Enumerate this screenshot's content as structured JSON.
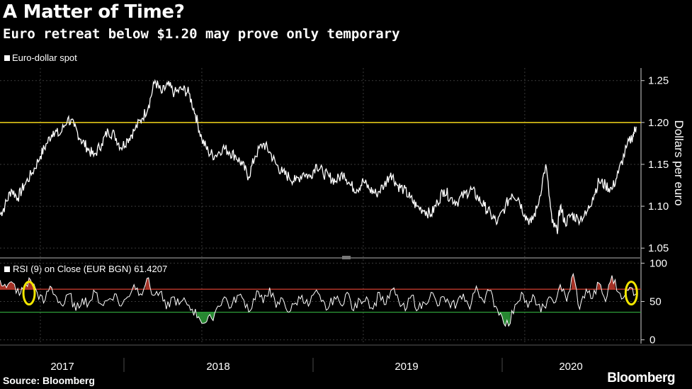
{
  "header": {
    "title": "A Matter of Time?",
    "subtitle": "Euro retreat below $1.20 may prove only temporary"
  },
  "footer": {
    "source": "Source: Bloomberg",
    "brand": "Bloomberg"
  },
  "colors": {
    "background": "#000000",
    "price_line": "#ffffff",
    "threshold": "#f2d61a",
    "overbought": "#c0392b",
    "oversold": "#2e9e3a",
    "highlight": "#f2e600"
  },
  "chart_data": [
    {
      "type": "line",
      "title": "Euro-dollar spot",
      "legend": [
        "Euro-dollar spot"
      ],
      "ylabel": "Dollars per euro",
      "ylim": [
        1.04,
        1.265
      ],
      "yticks": [
        "1.25",
        "1.20",
        "1.15",
        "1.10",
        "1.05"
      ],
      "reference_line": 1.2,
      "x": [
        2016.75,
        2016.78,
        2016.82,
        2016.86,
        2016.9,
        2016.95,
        2017.0,
        2017.04,
        2017.08,
        2017.12,
        2017.17,
        2017.21,
        2017.25,
        2017.29,
        2017.33,
        2017.38,
        2017.42,
        2017.46,
        2017.5,
        2017.54,
        2017.58,
        2017.63,
        2017.67,
        2017.71,
        2017.75,
        2017.79,
        2017.83,
        2017.88,
        2017.92,
        2017.96,
        2018.0,
        2018.04,
        2018.08,
        2018.13,
        2018.17,
        2018.21,
        2018.25,
        2018.29,
        2018.33,
        2018.38,
        2018.42,
        2018.46,
        2018.5,
        2018.54,
        2018.58,
        2018.63,
        2018.67,
        2018.71,
        2018.75,
        2018.79,
        2018.83,
        2018.88,
        2018.92,
        2018.96,
        2019.0,
        2019.04,
        2019.08,
        2019.13,
        2019.17,
        2019.21,
        2019.25,
        2019.29,
        2019.33,
        2019.38,
        2019.42,
        2019.46,
        2019.5,
        2019.54,
        2019.58,
        2019.63,
        2019.67,
        2019.71,
        2019.75,
        2019.79,
        2019.83,
        2019.88,
        2019.92,
        2019.96,
        2020.0,
        2020.04,
        2020.08,
        2020.13,
        2020.17,
        2020.2,
        2020.22,
        2020.25,
        2020.29,
        2020.33,
        2020.38,
        2020.42,
        2020.46,
        2020.5,
        2020.54,
        2020.58,
        2020.63,
        2020.67,
        2020.69
      ],
      "values": [
        1.09,
        1.1,
        1.12,
        1.11,
        1.125,
        1.14,
        1.16,
        1.175,
        1.19,
        1.185,
        1.205,
        1.195,
        1.18,
        1.17,
        1.16,
        1.175,
        1.19,
        1.185,
        1.17,
        1.18,
        1.19,
        1.205,
        1.22,
        1.25,
        1.235,
        1.245,
        1.235,
        1.24,
        1.235,
        1.21,
        1.18,
        1.165,
        1.16,
        1.17,
        1.165,
        1.16,
        1.15,
        1.135,
        1.16,
        1.175,
        1.165,
        1.15,
        1.14,
        1.135,
        1.13,
        1.14,
        1.135,
        1.15,
        1.14,
        1.135,
        1.13,
        1.14,
        1.125,
        1.12,
        1.13,
        1.12,
        1.115,
        1.125,
        1.14,
        1.125,
        1.12,
        1.11,
        1.1,
        1.095,
        1.09,
        1.105,
        1.12,
        1.11,
        1.105,
        1.115,
        1.12,
        1.11,
        1.1,
        1.09,
        1.08,
        1.1,
        1.115,
        1.11,
        1.09,
        1.08,
        1.1,
        1.15,
        1.08,
        1.07,
        1.1,
        1.08,
        1.09,
        1.085,
        1.09,
        1.11,
        1.13,
        1.125,
        1.12,
        1.14,
        1.17,
        1.185,
        1.195
      ],
      "xticks": [
        "2017",
        "2018",
        "2019",
        "2020"
      ]
    },
    {
      "type": "line",
      "title": "RSI (9) on Close (EUR BGN) 61.4207",
      "legend": [
        "RSI (9)  on Close (EUR BGN) 61.4207"
      ],
      "ylim": [
        -5,
        105
      ],
      "yticks": [
        "100",
        "50",
        "0"
      ],
      "overbought": 66,
      "oversold": 36,
      "highlights": [
        2016.93,
        2020.66
      ],
      "x": [
        2016.75,
        2016.79,
        2016.83,
        2016.87,
        2016.9,
        2016.94,
        2016.98,
        2017.02,
        2017.06,
        2017.1,
        2017.14,
        2017.18,
        2017.22,
        2017.26,
        2017.3,
        2017.34,
        2017.38,
        2017.42,
        2017.46,
        2017.5,
        2017.54,
        2017.58,
        2017.62,
        2017.66,
        2017.7,
        2017.74,
        2017.78,
        2017.82,
        2017.86,
        2017.9,
        2017.94,
        2017.98,
        2018.02,
        2018.06,
        2018.1,
        2018.14,
        2018.18,
        2018.22,
        2018.26,
        2018.3,
        2018.34,
        2018.38,
        2018.42,
        2018.46,
        2018.5,
        2018.54,
        2018.58,
        2018.62,
        2018.66,
        2018.7,
        2018.74,
        2018.78,
        2018.82,
        2018.86,
        2018.9,
        2018.94,
        2018.98,
        2019.02,
        2019.06,
        2019.1,
        2019.14,
        2019.18,
        2019.22,
        2019.26,
        2019.3,
        2019.34,
        2019.38,
        2019.42,
        2019.46,
        2019.5,
        2019.54,
        2019.58,
        2019.62,
        2019.66,
        2019.7,
        2019.74,
        2019.78,
        2019.82,
        2019.86,
        2019.9,
        2019.94,
        2019.98,
        2020.02,
        2020.06,
        2020.1,
        2020.14,
        2020.18,
        2020.22,
        2020.26,
        2020.3,
        2020.34,
        2020.38,
        2020.42,
        2020.46,
        2020.5,
        2020.54,
        2020.58,
        2020.62,
        2020.66,
        2020.69
      ],
      "values": [
        78,
        68,
        74,
        58,
        70,
        78,
        62,
        48,
        70,
        56,
        44,
        60,
        38,
        54,
        48,
        62,
        46,
        52,
        60,
        44,
        56,
        72,
        60,
        80,
        58,
        62,
        40,
        56,
        46,
        50,
        40,
        30,
        22,
        28,
        44,
        56,
        42,
        58,
        52,
        38,
        64,
        48,
        68,
        42,
        54,
        36,
        48,
        58,
        44,
        62,
        50,
        40,
        56,
        46,
        62,
        38,
        52,
        56,
        40,
        62,
        46,
        66,
        50,
        38,
        58,
        40,
        48,
        62,
        44,
        56,
        42,
        48,
        60,
        40,
        70,
        52,
        64,
        44,
        30,
        18,
        46,
        62,
        42,
        56,
        36,
        52,
        48,
        72,
        50,
        86,
        40,
        66,
        54,
        74,
        50,
        84,
        62,
        58,
        68,
        60
      ]
    }
  ]
}
